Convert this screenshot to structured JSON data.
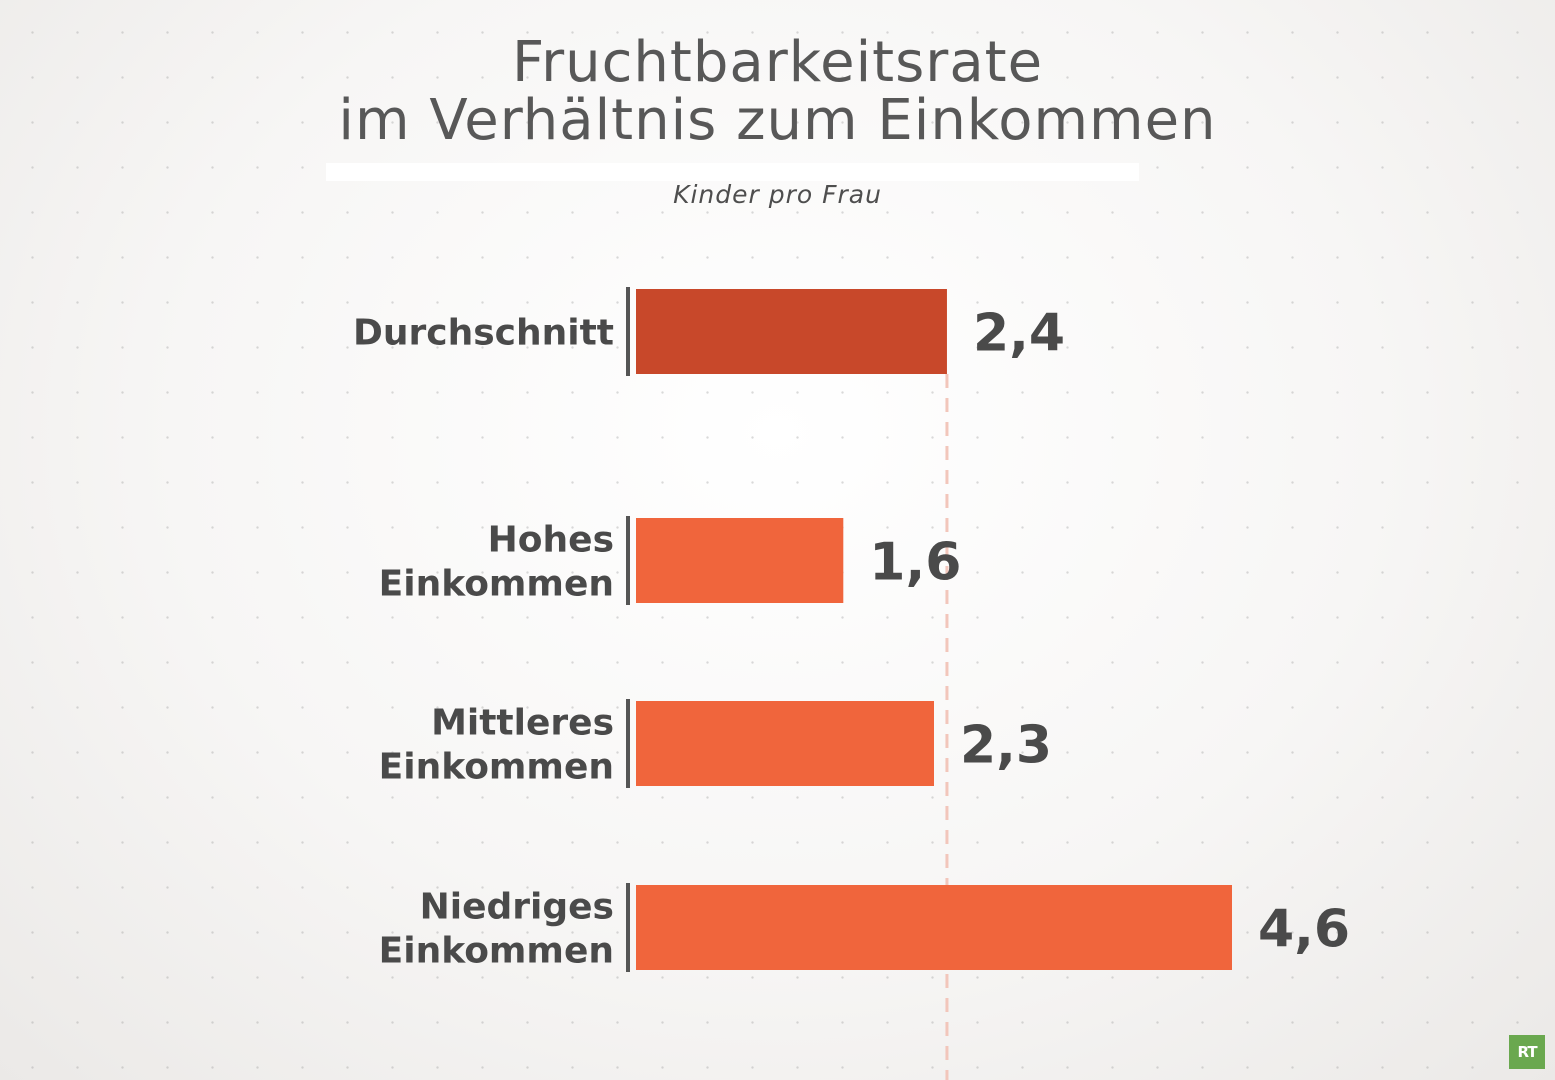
{
  "chart_data": {
    "type": "bar",
    "orientation": "horizontal",
    "title_line1": "Fruchtbarkeitsrate",
    "title_line2": "im Verhältnis zum Einkommen",
    "subtitle": "Kinder pro Frau",
    "categories": [
      [
        "Durchschnitt"
      ],
      [
        "Hohes",
        "Einkommen"
      ],
      [
        "Mittleres",
        "Einkommen"
      ],
      [
        "Niedriges",
        "Einkommen"
      ]
    ],
    "values": [
      2.4,
      1.6,
      2.3,
      4.6
    ],
    "value_labels": [
      "2,4",
      "1,6",
      "2,3",
      "4,6"
    ],
    "reference_line": 2.4,
    "xlim": [
      0,
      4.6
    ],
    "grid": false,
    "colors": {
      "average": "#c8482a",
      "bars": "#f0653c",
      "reference": "#f2c6bb",
      "axis": "#555555"
    }
  },
  "logo": "RT"
}
